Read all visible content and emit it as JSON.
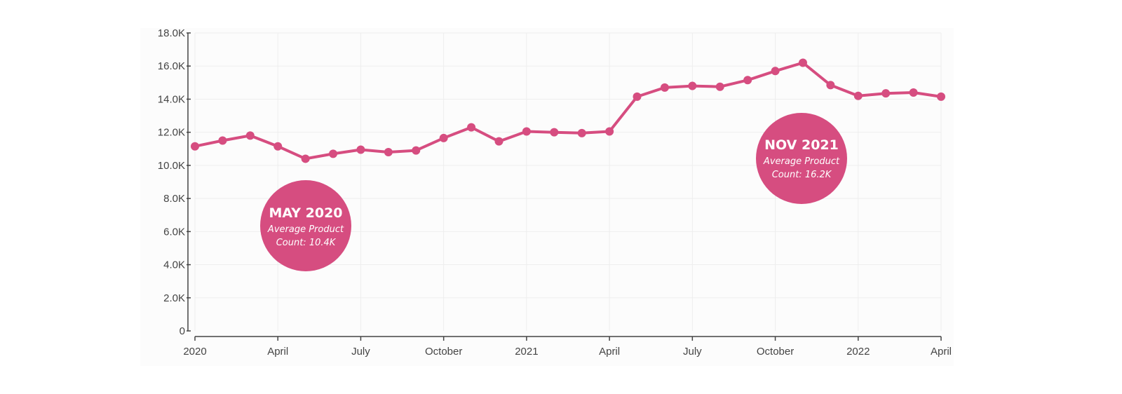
{
  "colors": {
    "line": "#d64d80",
    "callout": "#d64d80",
    "plot_bg": "#fcfcfc",
    "grid": "#eeeeee",
    "axis": "#444444"
  },
  "chart_data": {
    "type": "line",
    "title": "",
    "xlabel": "",
    "ylabel": "",
    "x_start": "2020-01",
    "x": [
      "2020-01",
      "2020-02",
      "2020-03",
      "2020-04",
      "2020-05",
      "2020-06",
      "2020-07",
      "2020-08",
      "2020-09",
      "2020-10",
      "2020-11",
      "2020-12",
      "2021-01",
      "2021-02",
      "2021-03",
      "2021-04",
      "2021-05",
      "2021-06",
      "2021-07",
      "2021-08",
      "2021-09",
      "2021-10",
      "2021-11",
      "2021-12",
      "2022-01",
      "2022-02",
      "2022-03",
      "2022-04"
    ],
    "series": [
      {
        "values": [
          11150,
          11500,
          11800,
          11150,
          10400,
          10700,
          10950,
          10800,
          10900,
          11650,
          12300,
          11450,
          12050,
          12000,
          11950,
          12050,
          14150,
          14700,
          14800,
          14750,
          15150,
          15700,
          16200,
          14850,
          14200,
          14350,
          14400,
          14150
        ]
      }
    ],
    "ylim": [
      0,
      18000
    ],
    "y_ticks": [
      {
        "value": 0,
        "label": "0"
      },
      {
        "value": 2000,
        "label": "2.0K"
      },
      {
        "value": 4000,
        "label": "4.0K"
      },
      {
        "value": 6000,
        "label": "6.0K"
      },
      {
        "value": 8000,
        "label": "8.0K"
      },
      {
        "value": 10000,
        "label": "10.0K"
      },
      {
        "value": 12000,
        "label": "12.0K"
      },
      {
        "value": 14000,
        "label": "14.0K"
      },
      {
        "value": 16000,
        "label": "16.0K"
      },
      {
        "value": 18000,
        "label": "18.0K"
      }
    ],
    "x_ticks": [
      {
        "index": 0,
        "label": "2020"
      },
      {
        "index": 3,
        "label": "April"
      },
      {
        "index": 6,
        "label": "July"
      },
      {
        "index": 9,
        "label": "October"
      },
      {
        "index": 12,
        "label": "2021"
      },
      {
        "index": 15,
        "label": "April"
      },
      {
        "index": 18,
        "label": "July"
      },
      {
        "index": 21,
        "label": "October"
      },
      {
        "index": 24,
        "label": "2022"
      },
      {
        "index": 27,
        "label": "April"
      }
    ],
    "grid": true,
    "annotations": [
      {
        "title": "MAY 2020",
        "line1": "Average Product",
        "line2": "Count: 10.4K"
      },
      {
        "title": "NOV 2021",
        "line1": "Average Product",
        "line2": "Count: 16.2K"
      }
    ]
  }
}
